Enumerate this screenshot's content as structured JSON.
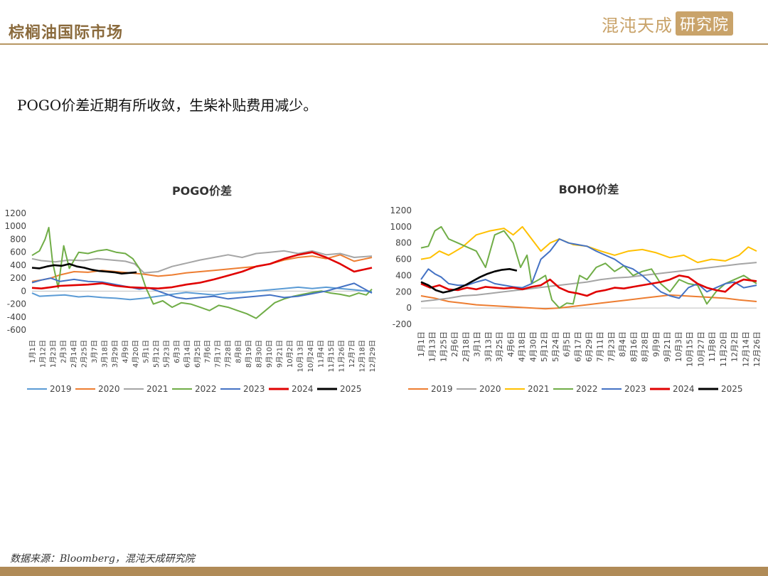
{
  "header": {
    "title": "棕榈油国际市场",
    "logo_text": "混沌天成",
    "logo_seal": "研究院"
  },
  "headline": "POGO价差近期有所收敛，生柴补贴费用减少。",
  "footer": {
    "source": "数据来源：Bloomberg，混沌天成研究院"
  },
  "chart_data": [
    {
      "type": "line",
      "title": "POGO价差",
      "ylim": [
        -600,
        1200
      ],
      "yticks": [
        1200,
        1000,
        800,
        600,
        400,
        200,
        0,
        -200,
        -400,
        -600
      ],
      "xticks": [
        "1月1日",
        "1月12日",
        "1月23日",
        "2月3日",
        "2月14日",
        "2月25日",
        "3月7日",
        "3月18日",
        "3月29日",
        "4月9日",
        "4月20日",
        "5月1日",
        "5月12日",
        "5月23日",
        "6月3日",
        "6月14日",
        "6月25日",
        "7月6日",
        "7月17日",
        "7月28日",
        "8月8日",
        "8月19日",
        "8月30日",
        "9月10日",
        "9月21日",
        "10月2日",
        "10月13日",
        "10月24日",
        "11月4日",
        "11月15日",
        "11月26日",
        "12月7日",
        "12月18日",
        "12月29日"
      ],
      "grid": false,
      "legend": "bottom",
      "series": [
        {
          "name": "2019",
          "color": "#5b9bd5",
          "x": [
            0,
            8,
            20,
            35,
            50,
            60,
            75,
            90,
            105,
            120,
            135,
            150,
            165,
            180,
            195,
            210,
            225,
            240,
            255,
            270,
            285,
            300,
            315,
            330,
            345,
            364
          ],
          "y": [
            -30,
            -80,
            -70,
            -60,
            -90,
            -80,
            -100,
            -110,
            -130,
            -110,
            -80,
            -50,
            -20,
            -40,
            -60,
            -30,
            -20,
            0,
            20,
            40,
            60,
            40,
            60,
            40,
            20,
            -10
          ]
        },
        {
          "name": "2020",
          "color": "#ed7d31",
          "x": [
            0,
            10,
            20,
            30,
            45,
            60,
            75,
            90,
            105,
            120,
            135,
            150,
            165,
            180,
            195,
            210,
            225,
            240,
            255,
            270,
            285,
            300,
            315,
            330,
            345,
            364
          ],
          "y": [
            150,
            170,
            200,
            250,
            300,
            290,
            320,
            300,
            280,
            260,
            230,
            250,
            280,
            300,
            320,
            340,
            360,
            380,
            420,
            480,
            520,
            540,
            500,
            560,
            460,
            520
          ]
        },
        {
          "name": "2021",
          "color": "#a5a5a5",
          "x": [
            0,
            10,
            25,
            40,
            55,
            70,
            85,
            100,
            110,
            120,
            135,
            150,
            165,
            180,
            195,
            210,
            225,
            240,
            255,
            270,
            285,
            300,
            315,
            330,
            345,
            364
          ],
          "y": [
            500,
            470,
            450,
            480,
            470,
            500,
            480,
            460,
            420,
            280,
            300,
            380,
            430,
            480,
            520,
            560,
            520,
            580,
            600,
            620,
            580,
            620,
            560,
            580,
            520,
            540
          ]
        },
        {
          "name": "2022",
          "color": "#70ad47",
          "x": [
            0,
            8,
            14,
            18,
            22,
            28,
            34,
            40,
            50,
            60,
            70,
            80,
            90,
            100,
            108,
            115,
            122,
            130,
            140,
            150,
            160,
            170,
            180,
            190,
            200,
            210,
            220,
            230,
            240,
            250,
            260,
            270,
            280,
            290,
            300,
            310,
            320,
            330,
            340,
            350,
            358,
            364
          ],
          "y": [
            550,
            620,
            800,
            980,
            450,
            50,
            700,
            350,
            600,
            580,
            620,
            640,
            600,
            580,
            500,
            350,
            50,
            -200,
            -150,
            -250,
            -180,
            -200,
            -250,
            -300,
            -220,
            -250,
            -300,
            -350,
            -420,
            -300,
            -180,
            -120,
            -80,
            -50,
            -20,
            0,
            -30,
            -50,
            -80,
            -30,
            -60,
            30
          ]
        },
        {
          "name": "2023",
          "color": "#4472c4",
          "x": [
            0,
            10,
            20,
            30,
            45,
            60,
            75,
            90,
            105,
            115,
            125,
            135,
            145,
            155,
            165,
            180,
            195,
            210,
            225,
            240,
            255,
            270,
            285,
            300,
            315,
            330,
            345,
            364
          ],
          "y": [
            130,
            170,
            200,
            150,
            180,
            150,
            140,
            100,
            60,
            30,
            50,
            0,
            -50,
            -100,
            -120,
            -100,
            -80,
            -120,
            -100,
            -80,
            -60,
            -100,
            -80,
            -40,
            0,
            60,
            120,
            -30
          ]
        },
        {
          "name": "2024",
          "color": "#e00000",
          "x": [
            0,
            10,
            20,
            30,
            45,
            60,
            75,
            90,
            105,
            120,
            135,
            150,
            165,
            180,
            195,
            210,
            225,
            240,
            255,
            270,
            285,
            300,
            315,
            330,
            345,
            364
          ],
          "y": [
            50,
            40,
            60,
            80,
            90,
            100,
            120,
            80,
            60,
            50,
            40,
            60,
            100,
            130,
            180,
            240,
            300,
            380,
            420,
            500,
            560,
            600,
            520,
            420,
            300,
            360
          ]
        },
        {
          "name": "2025",
          "color": "#000000",
          "x": [
            0,
            8,
            16,
            24,
            32,
            40,
            48,
            56,
            64,
            72,
            80,
            88,
            96,
            104,
            112
          ],
          "y": [
            360,
            350,
            380,
            400,
            390,
            420,
            380,
            360,
            330,
            310,
            300,
            290,
            270,
            280,
            290
          ]
        }
      ]
    },
    {
      "type": "line",
      "title": "BOHO价差",
      "ylim": [
        -200,
        1200
      ],
      "yticks": [
        1200,
        1000,
        800,
        600,
        400,
        200,
        0,
        -200
      ],
      "xticks": [
        "1月1日",
        "1月13日",
        "1月25日",
        "2月6日",
        "2月18日",
        "3月1日",
        "3月13日",
        "3月25日",
        "4月6日",
        "4月18日",
        "4月30日",
        "5月12日",
        "5月24日",
        "6月5日",
        "6月17日",
        "6月29日",
        "7月11日",
        "7月23日",
        "8月4日",
        "8月16日",
        "8月28日",
        "9月9日",
        "9月21日",
        "10月3日",
        "10月15日",
        "10月27日",
        "11月8日",
        "11月20日",
        "12月2日",
        "12月14日",
        "12月26日"
      ],
      "grid": false,
      "legend": "bottom",
      "series": [
        {
          "name": "2019",
          "color": "#ed7d31",
          "x": [
            0,
            15,
            30,
            45,
            60,
            75,
            90,
            105,
            120,
            135,
            150,
            165,
            180,
            195,
            210,
            225,
            240,
            255,
            270,
            285,
            300,
            315,
            330,
            345,
            364
          ],
          "y": [
            150,
            120,
            80,
            60,
            40,
            30,
            20,
            10,
            0,
            -10,
            0,
            20,
            40,
            60,
            80,
            100,
            120,
            140,
            160,
            150,
            140,
            130,
            120,
            100,
            80
          ]
        },
        {
          "name": "2020",
          "color": "#a5a5a5",
          "x": [
            0,
            15,
            30,
            45,
            60,
            75,
            90,
            105,
            120,
            135,
            150,
            165,
            180,
            195,
            210,
            225,
            240,
            255,
            270,
            285,
            300,
            315,
            330,
            345,
            364
          ],
          "y": [
            80,
            100,
            120,
            150,
            160,
            180,
            200,
            220,
            240,
            260,
            280,
            300,
            320,
            350,
            370,
            380,
            400,
            420,
            440,
            460,
            480,
            500,
            520,
            540,
            560
          ]
        },
        {
          "name": "2021",
          "color": "#ffc000",
          "x": [
            0,
            10,
            20,
            30,
            45,
            60,
            75,
            90,
            100,
            110,
            120,
            130,
            140,
            150,
            165,
            180,
            195,
            210,
            225,
            240,
            255,
            270,
            285,
            300,
            315,
            330,
            345,
            355,
            364
          ],
          "y": [
            600,
            620,
            700,
            650,
            750,
            900,
            950,
            980,
            900,
            1000,
            850,
            700,
            800,
            850,
            780,
            760,
            700,
            650,
            700,
            720,
            680,
            620,
            650,
            560,
            600,
            580,
            650,
            750,
            700
          ]
        },
        {
          "name": "2022",
          "color": "#70ad47",
          "x": [
            0,
            8,
            15,
            22,
            30,
            40,
            50,
            60,
            70,
            80,
            90,
            100,
            108,
            115,
            120,
            128,
            135,
            142,
            150,
            158,
            165,
            172,
            180,
            190,
            200,
            210,
            220,
            230,
            240,
            250,
            260,
            270,
            280,
            290,
            300,
            310,
            320,
            330,
            340,
            350,
            364
          ],
          "y": [
            740,
            760,
            950,
            1000,
            850,
            800,
            750,
            700,
            500,
            900,
            950,
            800,
            500,
            650,
            300,
            350,
            400,
            100,
            0,
            60,
            50,
            400,
            350,
            500,
            550,
            450,
            520,
            400,
            450,
            480,
            300,
            200,
            350,
            300,
            280,
            50,
            200,
            300,
            350,
            400,
            300
          ]
        },
        {
          "name": "2023",
          "color": "#4472c4",
          "x": [
            0,
            8,
            15,
            22,
            30,
            40,
            50,
            60,
            70,
            80,
            90,
            100,
            110,
            120,
            130,
            140,
            150,
            160,
            170,
            180,
            190,
            200,
            210,
            220,
            230,
            240,
            250,
            260,
            270,
            280,
            290,
            300,
            310,
            320,
            330,
            340,
            350,
            364
          ],
          "y": [
            350,
            480,
            420,
            380,
            300,
            280,
            280,
            320,
            350,
            300,
            280,
            260,
            250,
            300,
            600,
            700,
            850,
            800,
            780,
            760,
            700,
            650,
            600,
            520,
            480,
            400,
            300,
            200,
            150,
            120,
            250,
            300,
            200,
            250,
            300,
            320,
            250,
            280
          ]
        },
        {
          "name": "2024",
          "color": "#e00000",
          "x": [
            0,
            10,
            20,
            30,
            40,
            50,
            60,
            70,
            80,
            90,
            100,
            110,
            120,
            130,
            140,
            150,
            160,
            170,
            180,
            190,
            200,
            210,
            220,
            230,
            240,
            250,
            260,
            270,
            280,
            290,
            300,
            310,
            320,
            330,
            340,
            350,
            364
          ],
          "y": [
            300,
            250,
            280,
            230,
            220,
            250,
            230,
            260,
            250,
            240,
            250,
            230,
            260,
            280,
            350,
            250,
            200,
            180,
            150,
            200,
            220,
            250,
            240,
            260,
            280,
            300,
            320,
            350,
            400,
            380,
            300,
            250,
            220,
            200,
            300,
            350,
            330
          ]
        },
        {
          "name": "2025",
          "color": "#000000",
          "x": [
            0,
            8,
            16,
            24,
            32,
            40,
            48,
            56,
            64,
            72,
            80,
            88,
            96,
            104
          ],
          "y": [
            320,
            280,
            220,
            190,
            210,
            240,
            280,
            330,
            380,
            420,
            450,
            470,
            480,
            460
          ]
        }
      ]
    }
  ]
}
